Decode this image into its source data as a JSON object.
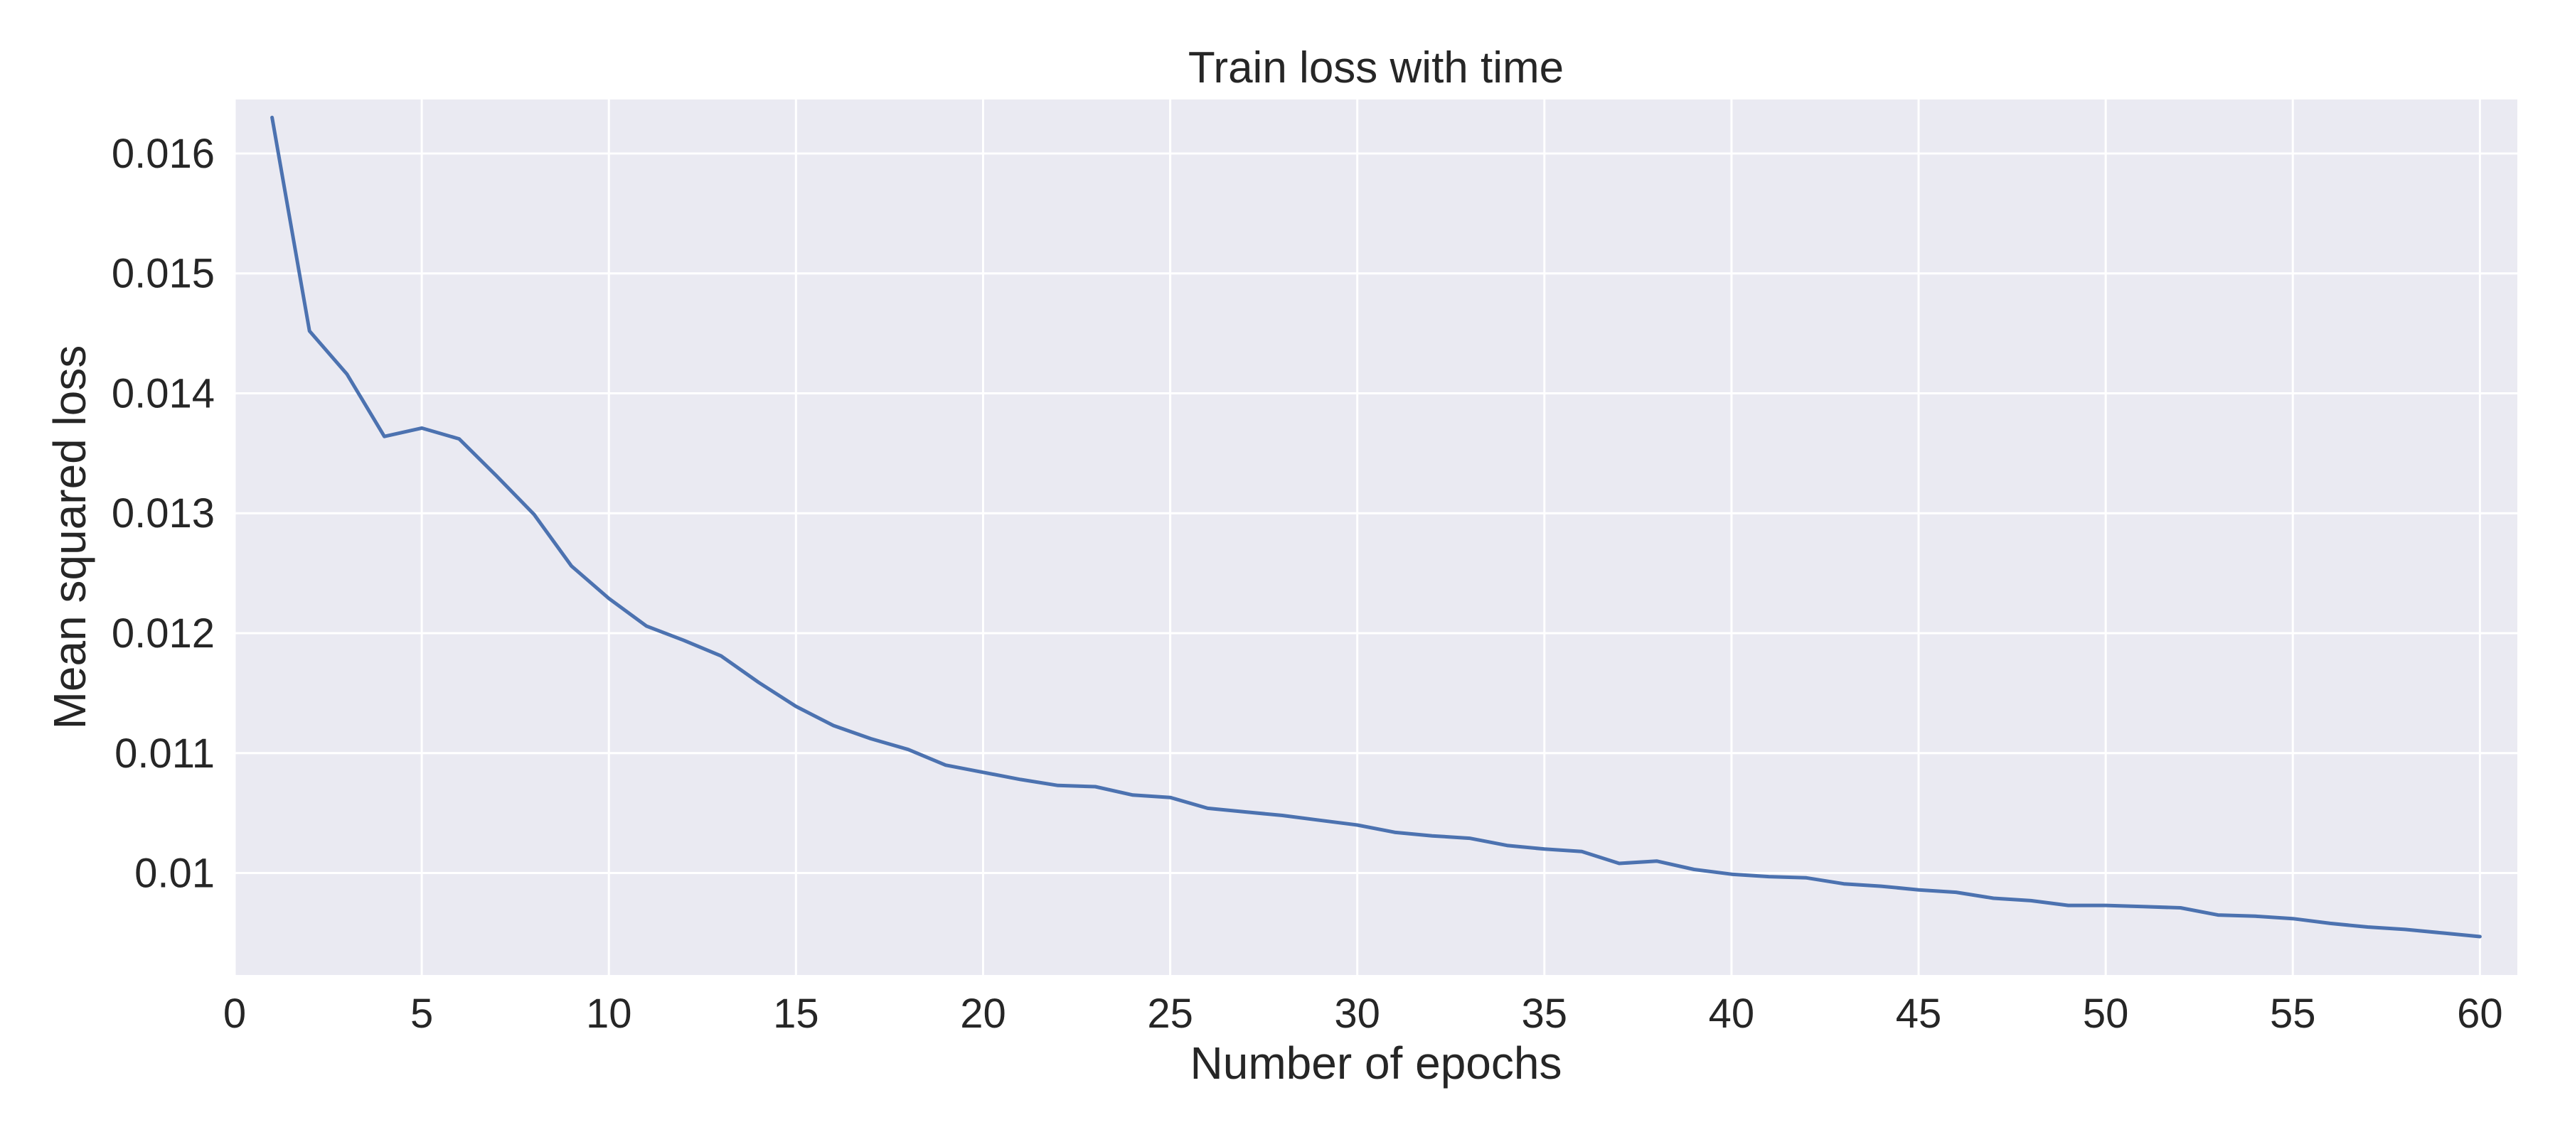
{
  "chart_data": {
    "type": "line",
    "title": "Train loss with time",
    "xlabel": "Number of epochs",
    "ylabel": "Mean squared loss",
    "xlim": [
      0,
      61
    ],
    "ylim": [
      0.00915,
      0.01645
    ],
    "xticks": [
      0,
      5,
      10,
      15,
      20,
      25,
      30,
      35,
      40,
      45,
      50,
      55,
      60
    ],
    "xtick_labels": [
      "0",
      "5",
      "10",
      "15",
      "20",
      "25",
      "30",
      "35",
      "40",
      "45",
      "50",
      "55",
      "60"
    ],
    "yticks": [
      0.01,
      0.011,
      0.012,
      0.013,
      0.014,
      0.015,
      0.016
    ],
    "ytick_labels": [
      "0.01",
      "0.011",
      "0.012",
      "0.013",
      "0.014",
      "0.015",
      "0.016"
    ],
    "grid": true,
    "colors": {
      "plot_background": "#eaeaf2",
      "grid": "#ffffff",
      "line": "#4c72b0",
      "text": "#262626"
    },
    "series": [
      {
        "x": [
          1,
          2,
          3,
          4,
          5,
          6,
          7,
          8,
          9,
          10,
          11,
          12,
          13,
          14,
          15,
          16,
          17,
          18,
          19,
          20,
          21,
          22,
          23,
          24,
          25,
          26,
          27,
          28,
          29,
          30,
          31,
          32,
          33,
          34,
          35,
          36,
          37,
          38,
          39,
          40,
          41,
          42,
          43,
          44,
          45,
          46,
          47,
          48,
          49,
          50,
          51,
          52,
          53,
          54,
          55,
          56,
          57,
          58,
          59,
          60
        ],
        "y": [
          0.0163,
          0.01452,
          0.01416,
          0.01364,
          0.01371,
          0.01362,
          0.01331,
          0.01299,
          0.01256,
          0.01229,
          0.01206,
          0.01194,
          0.01181,
          0.01159,
          0.01139,
          0.01123,
          0.01112,
          0.01103,
          0.0109,
          0.01084,
          0.01078,
          0.01073,
          0.01072,
          0.01065,
          0.01063,
          0.01054,
          0.01051,
          0.01048,
          0.01044,
          0.0104,
          0.01034,
          0.01031,
          0.01029,
          0.01023,
          0.0102,
          0.01018,
          0.01008,
          0.0101,
          0.01003,
          0.00999,
          0.00997,
          0.00996,
          0.00991,
          0.00989,
          0.00986,
          0.00984,
          0.00979,
          0.00977,
          0.00973,
          0.00973,
          0.00972,
          0.00971,
          0.00965,
          0.00964,
          0.00962,
          0.00958,
          0.00955,
          0.00953,
          0.0095,
          0.00947
        ]
      }
    ]
  }
}
